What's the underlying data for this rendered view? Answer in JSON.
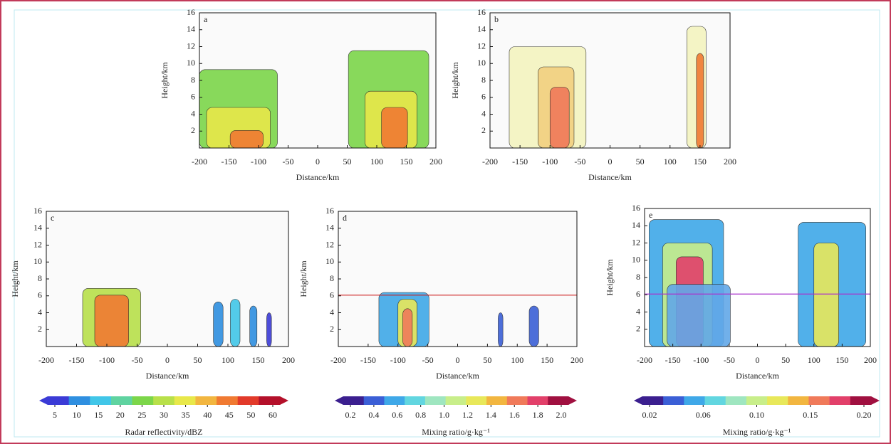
{
  "chart_data": [
    {
      "type": "contour",
      "panel": "a",
      "xlabel": "Distance/km",
      "ylabel": "Height/km",
      "xlim": [
        -200,
        200
      ],
      "xticks": [
        -200,
        -150,
        -100,
        -50,
        0,
        50,
        100,
        150,
        200
      ],
      "ylim": [
        0,
        16
      ],
      "yticks": [
        2,
        4,
        6,
        8,
        10,
        12,
        14,
        16
      ]
    },
    {
      "type": "contour",
      "panel": "b",
      "xlabel": "Distance/km",
      "ylabel": "Height/km",
      "xlim": [
        -200,
        200
      ],
      "xticks": [
        -200,
        -150,
        -100,
        -50,
        0,
        50,
        100,
        150,
        200
      ],
      "ylim": [
        0,
        16
      ],
      "yticks": [
        2,
        4,
        6,
        8,
        10,
        12,
        14,
        16
      ]
    },
    {
      "type": "contour",
      "panel": "c",
      "xlabel": "Distance/km",
      "ylabel": "Height/km",
      "xlim": [
        -200,
        200
      ],
      "xticks": [
        -200,
        -150,
        -100,
        -50,
        0,
        50,
        100,
        150,
        200
      ],
      "ylim": [
        0,
        16
      ],
      "yticks": [
        2,
        4,
        6,
        8,
        10,
        12,
        14,
        16
      ]
    },
    {
      "type": "contour",
      "panel": "d",
      "xlabel": "Distance/km",
      "ylabel": "Height/km",
      "xlim": [
        -200,
        200
      ],
      "xticks": [
        -200,
        -150,
        -100,
        -50,
        0,
        50,
        100,
        150,
        200
      ],
      "ylim": [
        0,
        16
      ],
      "yticks": [
        2,
        4,
        6,
        8,
        10,
        12,
        14,
        16
      ]
    },
    {
      "type": "contour",
      "panel": "e",
      "xlabel": "Distance/km",
      "ylabel": "Height/km",
      "xlim": [
        -200,
        200
      ],
      "xticks": [
        -200,
        -150,
        -100,
        -50,
        0,
        50,
        100,
        150,
        200
      ],
      "ylim": [
        0,
        16
      ],
      "yticks": [
        2,
        4,
        6,
        8,
        10,
        12,
        14,
        16
      ]
    }
  ],
  "colorbars": [
    {
      "label": "Radar reflectivity/dBZ",
      "ticks": [
        5,
        10,
        15,
        20,
        25,
        30,
        35,
        40,
        45,
        50,
        60
      ],
      "colors": [
        "#3b3bd6",
        "#2f8fe0",
        "#41c6e8",
        "#5fd3a0",
        "#7cd64a",
        "#b8e04a",
        "#e8e84a",
        "#f2b640",
        "#f07a32",
        "#e23a2a",
        "#b4102a"
      ]
    },
    {
      "label": "Mixing ratio/g·kg⁻¹",
      "ticks": [
        0.2,
        0.4,
        0.6,
        0.8,
        {
          "value": 1.0,
          "label": "1.0"
        },
        1.2,
        1.4,
        1.6,
        1.8,
        {
          "value": 2.0,
          "label": "2.0"
        }
      ],
      "colors": [
        "#3b1f8f",
        "#3b5fd6",
        "#3fa8e8",
        "#62d6e0",
        "#9fe6c0",
        "#c8ee8a",
        "#e8e85a",
        "#f2b640",
        "#f07a5a",
        "#e2406a",
        "#a01040"
      ]
    },
    {
      "label": "Mixing ratio/g·kg⁻¹",
      "ticks": [
        0.02,
        0.06,
        {
          "value": 0.1,
          "label": "0.10"
        },
        0.15,
        {
          "value": 0.2,
          "label": "0.20"
        }
      ],
      "colors": [
        "#3b1f8f",
        "#3b5fd6",
        "#3fa8e8",
        "#62d6e0",
        "#9fe6c0",
        "#c8ee8a",
        "#e8e85a",
        "#f2b640",
        "#f07a5a",
        "#e2406a",
        "#a01040"
      ]
    }
  ]
}
